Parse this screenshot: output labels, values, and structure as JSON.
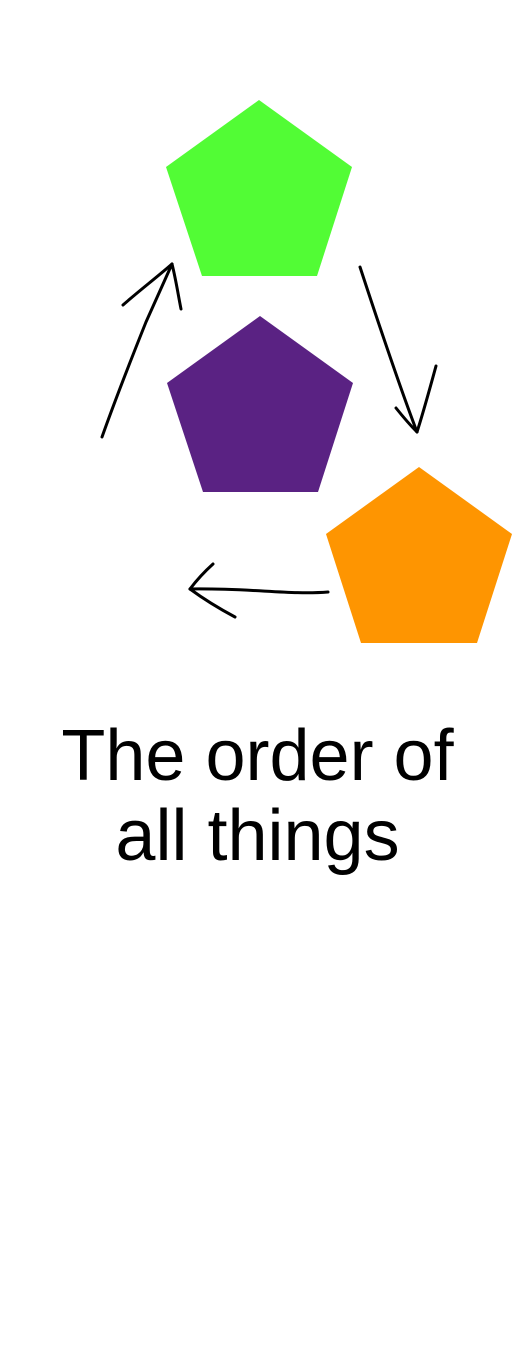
{
  "diagram": {
    "caption_line_1": "The order of",
    "caption_line_2": "all things",
    "shapes": [
      {
        "id": "green",
        "color": "#52fc35"
      },
      {
        "id": "purple",
        "color": "#5a2283"
      },
      {
        "id": "orange",
        "color": "#fe9501"
      }
    ],
    "arrow_color": "#000000"
  }
}
